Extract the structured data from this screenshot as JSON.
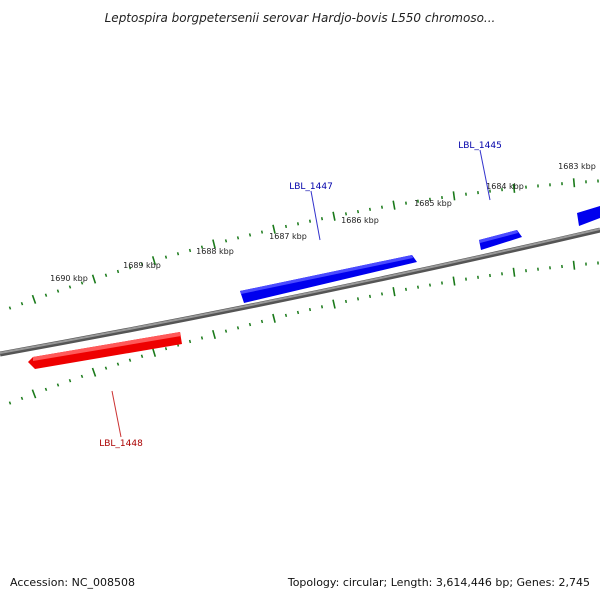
{
  "title": "Leptospira borgpetersenii serovar Hardjo-bovis L550 chromoso...",
  "footer": {
    "accession": "Accession: NC_008508",
    "summary": "Topology: circular; Length: 3,614,446 bp; Genes: 2,745"
  },
  "colors": {
    "forward_gene": "#0000ee",
    "reverse_gene": "#ee0000",
    "backbone": "#888888",
    "ticks": "#1a7a1a",
    "background": "#ffffff"
  },
  "ticks": {
    "outer_labels": [
      "1690 kbp",
      "1689 kbp",
      "1688 kbp",
      "1687 kbp",
      "1686 kbp",
      "1685 kbp",
      "1684 kbp",
      "1683 kbp"
    ]
  },
  "genes": [
    {
      "name": "LBL_1447",
      "strand": "forward",
      "color": "#0000ee"
    },
    {
      "name": "LBL_1445",
      "strand": "forward",
      "color": "#0000ee"
    },
    {
      "name": "LBL_1448",
      "strand": "reverse",
      "color": "#ee0000"
    }
  ]
}
